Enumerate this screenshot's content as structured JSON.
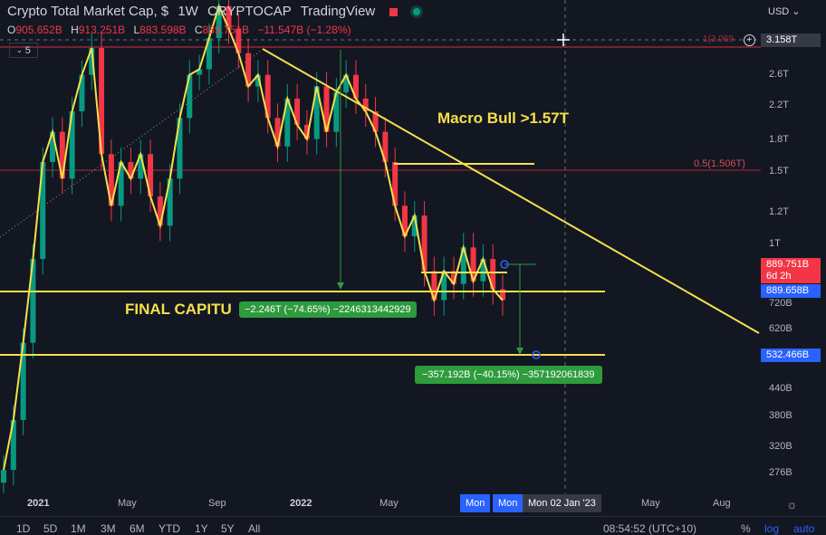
{
  "header": {
    "symbol_title": "Crypto Total Market Cap, $",
    "interval": "1W",
    "exchange": "CRYPTOCAP",
    "source": "TradingView"
  },
  "ohlc": {
    "o_label": "O",
    "o_value": "905.652B",
    "h_label": "H",
    "h_value": "913.251B",
    "l_label": "L",
    "l_value": "883.598B",
    "c_label": "C",
    "c_value": "889.751B",
    "change": "−11.547B (−1.28%)"
  },
  "indicator_count": "5",
  "currency": "USD",
  "price_axis": {
    "labels": [
      {
        "text": "2.6T"
      },
      {
        "text": "2.2T"
      },
      {
        "text": "1.8T"
      },
      {
        "text": "1.5T"
      },
      {
        "text": "1.2T"
      },
      {
        "text": "1T"
      },
      {
        "text": "720B"
      },
      {
        "text": "620B"
      },
      {
        "text": "440B"
      },
      {
        "text": "380B"
      },
      {
        "text": "320B"
      },
      {
        "text": "276B"
      }
    ],
    "crosshair_value": "3.158T",
    "last_price": "889.751B",
    "countdown": "6d 2h",
    "support_price": "889.658B",
    "target_price": "532.466B"
  },
  "fib": {
    "level1_label": "1(3.069",
    "level05_label": "0.5(1.506T)"
  },
  "annotations": {
    "macro_bull": "Macro Bull >1.57T",
    "final_cap": "FINAL CAPITU",
    "measure1": "−2.246T (−74.65%) −2246313442929",
    "measure2": "−357.192B (−40.15%) −357192061839"
  },
  "time_axis": {
    "labels": [
      "2021",
      "May",
      "Sep",
      "2022",
      "May",
      "Mon",
      "Mon",
      "Mon 02 Jan '23",
      "May",
      "Aug"
    ]
  },
  "bottom_bar": {
    "ranges": [
      "1D",
      "5D",
      "1M",
      "3M",
      "6M",
      "YTD",
      "1Y",
      "5Y",
      "All"
    ],
    "clock": "08:54:52 (UTC+10)",
    "percent": "%",
    "log": "log",
    "auto": "auto"
  },
  "colors": {
    "background": "#131722",
    "yellow_trend": "#f5e04a",
    "bull_candle": "#089981",
    "bear_candle": "#f23645",
    "fib_red": "#b22833",
    "measure_green": "#2e9b3d",
    "price_blue": "#2962ff"
  },
  "chart_data": {
    "type": "candlestick",
    "scale": "log",
    "x_range": [
      "2020-12",
      "2023-09"
    ],
    "y_range": [
      "276B",
      "3.158T"
    ],
    "weekly_close_path_trillions": [
      0.45,
      0.55,
      0.75,
      1.05,
      1.55,
      1.75,
      1.45,
      1.9,
      2.2,
      2.45,
      1.6,
      1.3,
      1.55,
      1.45,
      1.6,
      1.35,
      1.2,
      1.45,
      1.85,
      2.2,
      2.25,
      2.55,
      2.9,
      2.65,
      2.4,
      2.1,
      2.2,
      1.85,
      1.65,
      2.0,
      1.8,
      1.7,
      2.1,
      1.75,
      2.05,
      2.2,
      2.0,
      1.9,
      1.75,
      1.55,
      1.3,
      1.15,
      1.25,
      1.0,
      0.89,
      1.0,
      0.95,
      1.1,
      0.96,
      1.05,
      0.93,
      0.89
    ],
    "horizontal_levels": [
      {
        "label": "0.5(1.506T)",
        "value": 1.506
      },
      {
        "label": "Macro Bull >1.57T",
        "value": 1.57
      },
      {
        "label": "889.658B",
        "value": 0.889658
      },
      {
        "label": "532.466B",
        "value": 0.532466
      }
    ],
    "measurements": [
      {
        "label": "−2.246T (−74.65%) −2246313442929"
      },
      {
        "label": "−357.192B (−40.15%) −357192061839"
      }
    ]
  }
}
